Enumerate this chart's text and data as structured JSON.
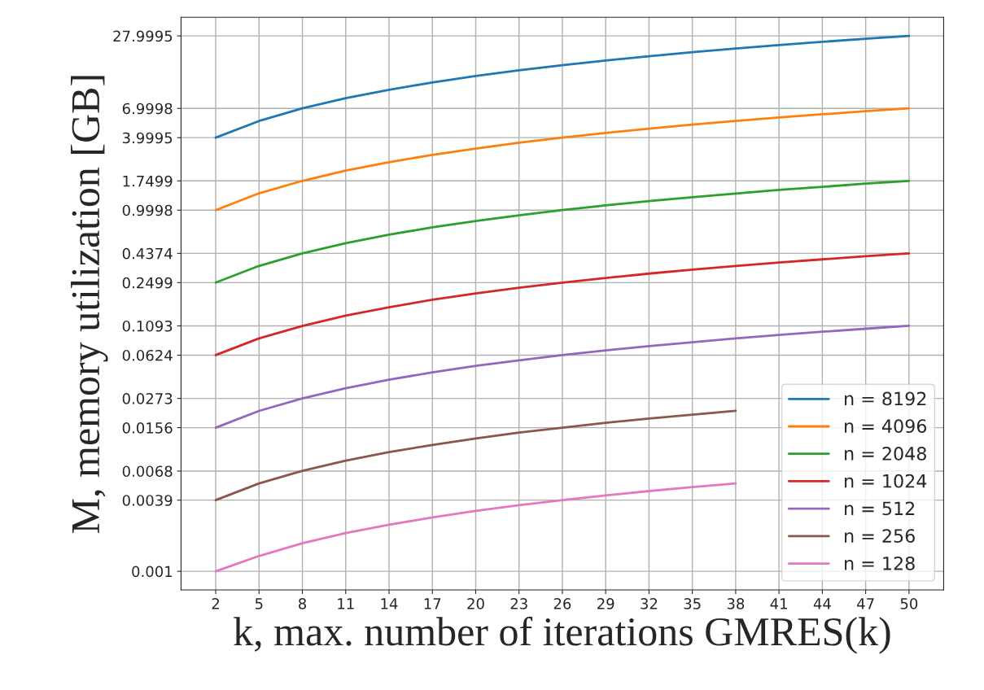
{
  "chart_data": {
    "type": "line",
    "xlabel": "k, max. number of iterations GMRES(k)",
    "ylabel": "M, memory utilization [GB]",
    "x": [
      2,
      5,
      8,
      11,
      14,
      17,
      20,
      23,
      26,
      29,
      32,
      35,
      38,
      41,
      44,
      47,
      50
    ],
    "series": [
      {
        "name": "n = 8192",
        "color": "#1f77b4",
        "values": [
          4.0,
          5.5,
          7.0,
          8.5,
          10.0,
          11.5,
          13.0,
          14.5,
          16.0,
          17.5,
          19.0,
          20.5,
          22.0,
          23.5,
          25.0,
          26.5,
          28.0
        ]
      },
      {
        "name": "n = 4096",
        "color": "#ff7f0e",
        "values": [
          1.0,
          1.38,
          1.75,
          2.13,
          2.5,
          2.88,
          3.25,
          3.63,
          4.0,
          4.38,
          4.75,
          5.13,
          5.5,
          5.88,
          6.25,
          6.63,
          7.0
        ]
      },
      {
        "name": "n = 2048",
        "color": "#2ca02c",
        "values": [
          0.25,
          0.344,
          0.4375,
          0.531,
          0.625,
          0.719,
          0.8125,
          0.906,
          1.0,
          1.094,
          1.19,
          1.28,
          1.375,
          1.47,
          1.56,
          1.66,
          1.75
        ]
      },
      {
        "name": "n = 1024",
        "color": "#d62728",
        "values": [
          0.0625,
          0.086,
          0.109,
          0.133,
          0.156,
          0.18,
          0.203,
          0.227,
          0.25,
          0.273,
          0.297,
          0.32,
          0.344,
          0.367,
          0.39,
          0.414,
          0.4375
        ]
      },
      {
        "name": "n = 512",
        "color": "#9467bd",
        "values": [
          0.0156,
          0.0215,
          0.0273,
          0.0332,
          0.039,
          0.0449,
          0.0508,
          0.0566,
          0.0625,
          0.0684,
          0.0742,
          0.08,
          0.0859,
          0.0918,
          0.0977,
          0.1035,
          0.1094
        ]
      },
      {
        "name": "n = 256",
        "color": "#8c564b",
        "values": [
          0.0039,
          0.00537,
          0.00684,
          0.0083,
          0.00977,
          0.0112,
          0.0127,
          0.0142,
          0.0156,
          0.0171,
          0.0186,
          0.02,
          0.0215,
          null,
          null,
          null,
          null
        ]
      },
      {
        "name": "n = 128",
        "color": "#e377c2",
        "values": [
          0.001,
          0.00134,
          0.00171,
          0.00208,
          0.00244,
          0.0028,
          0.00317,
          0.00354,
          0.0039,
          0.00427,
          0.00464,
          0.005,
          0.00537,
          null,
          null,
          null,
          null
        ]
      }
    ],
    "log": "y",
    "ylim": [
      0.0007,
      40
    ],
    "yticks": [
      0.001,
      0.0039,
      0.0068,
      0.0156,
      0.0273,
      0.0624,
      0.1093,
      0.2499,
      0.4374,
      0.9998,
      1.7499,
      3.9995,
      6.9998,
      27.9995
    ],
    "xlim": [
      -0.4,
      52.4
    ],
    "xticks": [
      2,
      5,
      8,
      11,
      14,
      17,
      20,
      23,
      26,
      29,
      32,
      35,
      38,
      41,
      44,
      47,
      50
    ],
    "grid": true,
    "legend": "bottom right",
    "line_style": "solid",
    "marker": "none"
  }
}
